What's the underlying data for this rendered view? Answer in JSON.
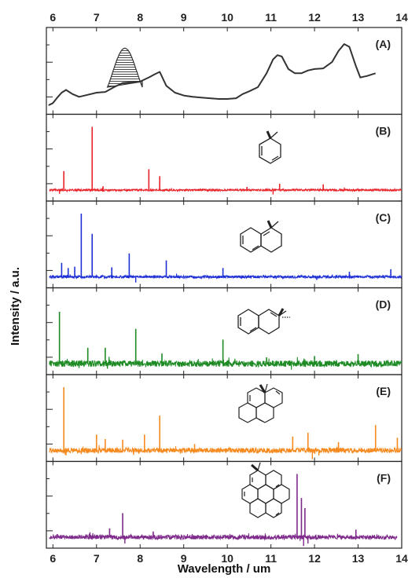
{
  "chart_data": {
    "type": "line",
    "title": "",
    "xlabel": "Wavelength / um",
    "ylabel": "Intensity / a.u.",
    "xlim": [
      5.85,
      14
    ],
    "x_ticks": [
      6,
      7,
      8,
      9,
      10,
      11,
      12,
      13,
      14
    ],
    "x_tick_labels": [
      "6",
      "7",
      "8",
      "9",
      "10",
      "11",
      "12",
      "13",
      "14"
    ],
    "tick_label_positions": "top and bottom",
    "stacked_panels": true,
    "panels": [
      {
        "label": "(A)",
        "color": "#333333",
        "kind": "smooth",
        "hatched_feature": {
          "x_range": [
            7.25,
            8.05
          ],
          "note": "hatched band near 7.7"
        },
        "points": [
          [
            5.9,
            0.04
          ],
          [
            6.0,
            0.07
          ],
          [
            6.1,
            0.15
          ],
          [
            6.2,
            0.22
          ],
          [
            6.3,
            0.26
          ],
          [
            6.45,
            0.2
          ],
          [
            6.6,
            0.16
          ],
          [
            6.8,
            0.19
          ],
          [
            7.0,
            0.22
          ],
          [
            7.2,
            0.23
          ],
          [
            7.4,
            0.3
          ],
          [
            7.6,
            0.36
          ],
          [
            7.8,
            0.37
          ],
          [
            8.0,
            0.38
          ],
          [
            8.2,
            0.44
          ],
          [
            8.35,
            0.49
          ],
          [
            8.45,
            0.52
          ],
          [
            8.6,
            0.32
          ],
          [
            8.8,
            0.22
          ],
          [
            9.0,
            0.18
          ],
          [
            9.2,
            0.16
          ],
          [
            9.4,
            0.15
          ],
          [
            9.6,
            0.14
          ],
          [
            9.8,
            0.13
          ],
          [
            10.0,
            0.13
          ],
          [
            10.2,
            0.14
          ],
          [
            10.35,
            0.2
          ],
          [
            10.5,
            0.24
          ],
          [
            10.7,
            0.3
          ],
          [
            10.9,
            0.5
          ],
          [
            11.05,
            0.7
          ],
          [
            11.15,
            0.76
          ],
          [
            11.25,
            0.74
          ],
          [
            11.4,
            0.56
          ],
          [
            11.55,
            0.5
          ],
          [
            11.7,
            0.5
          ],
          [
            11.85,
            0.54
          ],
          [
            12.0,
            0.56
          ],
          [
            12.2,
            0.57
          ],
          [
            12.4,
            0.66
          ],
          [
            12.55,
            0.82
          ],
          [
            12.68,
            0.92
          ],
          [
            12.8,
            0.88
          ],
          [
            12.95,
            0.6
          ],
          [
            13.05,
            0.44
          ],
          [
            13.2,
            0.46
          ],
          [
            13.4,
            0.5
          ]
        ]
      },
      {
        "label": "(B)",
        "color": "#e8232a",
        "kind": "spectrum",
        "baseline": 0.0,
        "noise": 0.015,
        "xmax": 14,
        "peaks": [
          [
            6.25,
            0.3
          ],
          [
            6.9,
            1.0
          ],
          [
            7.15,
            0.06
          ],
          [
            8.2,
            0.33
          ],
          [
            8.45,
            0.22
          ],
          [
            10.45,
            0.05
          ],
          [
            11.2,
            0.1
          ],
          [
            12.2,
            0.09
          ]
        ],
        "dips": [
          [
            6.15,
            -0.06
          ],
          [
            11.05,
            -0.07
          ]
        ]
      },
      {
        "label": "(C)",
        "color": "#1f2fd6",
        "kind": "spectrum",
        "baseline": 0.0,
        "noise": 0.02,
        "xmax": 14,
        "peaks": [
          [
            6.2,
            0.22
          ],
          [
            6.35,
            0.14
          ],
          [
            6.5,
            0.16
          ],
          [
            6.65,
            1.0
          ],
          [
            6.9,
            0.68
          ],
          [
            7.35,
            0.15
          ],
          [
            7.75,
            0.37
          ],
          [
            8.6,
            0.26
          ],
          [
            9.9,
            0.14
          ],
          [
            12.8,
            0.08
          ],
          [
            13.75,
            0.12
          ]
        ],
        "dips": [
          [
            7.9,
            -0.09
          ],
          [
            12.05,
            -0.05
          ]
        ]
      },
      {
        "label": "(D)",
        "color": "#1d8a24",
        "kind": "spectrum",
        "baseline": 0.0,
        "noise": 0.05,
        "xmax": 14,
        "peaks": [
          [
            6.15,
            0.82
          ],
          [
            6.8,
            0.25
          ],
          [
            7.2,
            0.25
          ],
          [
            7.9,
            0.55
          ],
          [
            8.5,
            0.16
          ],
          [
            9.9,
            0.38
          ],
          [
            10.9,
            0.1
          ],
          [
            12.0,
            0.12
          ],
          [
            13.0,
            0.15
          ]
        ],
        "dips": [
          [
            6.6,
            -0.07
          ],
          [
            7.25,
            -0.08
          ]
        ]
      },
      {
        "label": "(E)",
        "color": "#f58a1f",
        "kind": "spectrum",
        "baseline": 0.0,
        "noise": 0.04,
        "xmax": 14,
        "peaks": [
          [
            6.25,
            1.0
          ],
          [
            7.0,
            0.25
          ],
          [
            7.2,
            0.18
          ],
          [
            7.6,
            0.17
          ],
          [
            8.1,
            0.25
          ],
          [
            8.45,
            0.55
          ],
          [
            9.25,
            0.1
          ],
          [
            11.5,
            0.22
          ],
          [
            11.85,
            0.28
          ],
          [
            12.55,
            0.13
          ],
          [
            13.4,
            0.4
          ],
          [
            13.9,
            0.2
          ]
        ],
        "dips": [
          [
            6.3,
            -0.08
          ],
          [
            6.65,
            -0.06
          ],
          [
            7.85,
            -0.07
          ],
          [
            11.95,
            -0.14
          ],
          [
            12.1,
            -0.08
          ]
        ]
      },
      {
        "label": "(F)",
        "color": "#7d2a8a",
        "kind": "spectrum",
        "baseline": 0.0,
        "noise": 0.035,
        "xmax": 13.9,
        "peaks": [
          [
            6.1,
            0.05
          ],
          [
            7.3,
            0.14
          ],
          [
            7.6,
            0.38
          ],
          [
            8.3,
            0.09
          ],
          [
            11.6,
            1.0
          ],
          [
            11.7,
            0.62
          ],
          [
            11.78,
            0.46
          ],
          [
            12.95,
            0.12
          ]
        ],
        "dips": [
          [
            7.65,
            -0.1
          ],
          [
            11.75,
            -0.14
          ],
          [
            11.85,
            -0.1
          ]
        ]
      }
    ],
    "molecules": [
      {
        "panel": "(B)",
        "depicted": "methylated benzene ring (CH3 on ring carbon)",
        "rings": 1
      },
      {
        "panel": "(C)",
        "depicted": "methylated naphthalene",
        "rings": 2
      },
      {
        "panel": "(D)",
        "depicted": "methylated naphthalene (2-position)",
        "rings": 2
      },
      {
        "panel": "(E)",
        "depicted": "methylated pyrene",
        "rings": 4
      },
      {
        "panel": "(F)",
        "depicted": "methylated coronene",
        "rings": 7
      }
    ]
  }
}
